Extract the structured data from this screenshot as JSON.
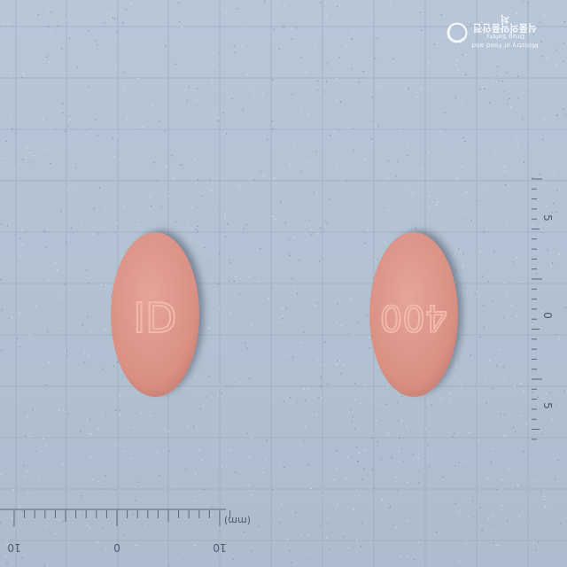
{
  "colors": {
    "background": "#b4c4d6",
    "grid_line": "#9fb1c6",
    "tablet": "#dc9488",
    "tablet_shadow": "#5b6578",
    "ruler": "#58677c"
  },
  "tablets": [
    {
      "imprint": "ID"
    },
    {
      "imprint": "400"
    }
  ],
  "ruler_bottom": {
    "unit_label": "(mm)",
    "tick_labels": [
      "10",
      "0",
      "10"
    ]
  },
  "ruler_right": {
    "tick_labels": [
      "5",
      "0",
      "5"
    ]
  },
  "watermark": {
    "line1": "Ministry of Food and Drug Safety",
    "line2": "식품의약품안전처"
  }
}
